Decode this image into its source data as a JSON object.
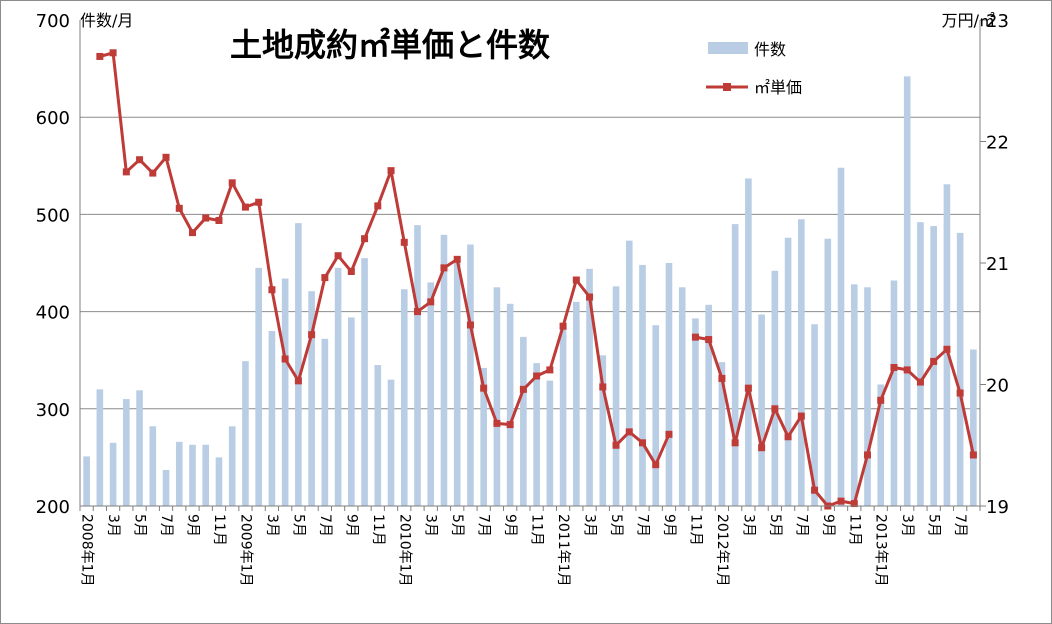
{
  "chart_data": {
    "type": "bar+line",
    "title": "土地成約㎡単価と件数",
    "y_left_label": "件数/月",
    "y_right_label": "万円/㎡",
    "y_left_range": [
      200,
      700
    ],
    "y_left_ticks": [
      "200",
      "300",
      "400",
      "500",
      "600",
      "700"
    ],
    "y_right_range": [
      19,
      23
    ],
    "y_right_ticks": [
      "19",
      "20",
      "21",
      "22",
      "23"
    ],
    "grid": true,
    "legend_position": "top-right",
    "x_tick_labels": [
      {
        "idx": 0,
        "label": "2008年1月"
      },
      {
        "idx": 2,
        "label": "3月"
      },
      {
        "idx": 4,
        "label": "5月"
      },
      {
        "idx": 6,
        "label": "7月"
      },
      {
        "idx": 8,
        "label": "9月"
      },
      {
        "idx": 10,
        "label": "11月"
      },
      {
        "idx": 12,
        "label": "2009年1月"
      },
      {
        "idx": 14,
        "label": "3月"
      },
      {
        "idx": 16,
        "label": "5月"
      },
      {
        "idx": 18,
        "label": "7月"
      },
      {
        "idx": 20,
        "label": "9月"
      },
      {
        "idx": 22,
        "label": "11月"
      },
      {
        "idx": 24,
        "label": "2010年1月"
      },
      {
        "idx": 26,
        "label": "3月"
      },
      {
        "idx": 28,
        "label": "5月"
      },
      {
        "idx": 30,
        "label": "7月"
      },
      {
        "idx": 32,
        "label": "9月"
      },
      {
        "idx": 34,
        "label": "11月"
      },
      {
        "idx": 36,
        "label": "2011年1月"
      },
      {
        "idx": 38,
        "label": "3月"
      },
      {
        "idx": 40,
        "label": "5月"
      },
      {
        "idx": 42,
        "label": "7月"
      },
      {
        "idx": 44,
        "label": "9月"
      },
      {
        "idx": 46,
        "label": "11月"
      },
      {
        "idx": 48,
        "label": "2012年1月"
      },
      {
        "idx": 50,
        "label": "3月"
      },
      {
        "idx": 52,
        "label": "5月"
      },
      {
        "idx": 54,
        "label": "7月"
      },
      {
        "idx": 56,
        "label": "9月"
      },
      {
        "idx": 58,
        "label": "11月"
      },
      {
        "idx": 60,
        "label": "2013年1月"
      },
      {
        "idx": 62,
        "label": "3月"
      },
      {
        "idx": 64,
        "label": "5月"
      },
      {
        "idx": 66,
        "label": "7月"
      }
    ],
    "series": [
      {
        "name": "件数",
        "type": "bar",
        "axis": "left",
        "values": [
          251,
          320,
          265,
          310,
          319,
          282,
          237,
          266,
          263,
          263,
          250,
          282,
          349,
          445,
          380,
          434,
          491,
          421,
          372,
          445,
          394,
          455,
          345,
          330,
          423,
          489,
          430,
          479,
          450,
          469,
          342,
          425,
          408,
          374,
          347,
          329,
          387,
          410,
          444,
          355,
          426,
          473,
          448,
          386,
          450,
          425,
          393,
          407,
          348,
          490,
          537,
          397,
          442,
          476,
          495,
          387,
          475,
          548,
          428,
          425,
          325,
          432,
          642,
          492,
          488,
          531,
          481,
          361
        ]
      },
      {
        "name": "㎡単価",
        "type": "line",
        "axis": "right",
        "values": [
          null,
          22.7,
          22.73,
          21.75,
          21.85,
          21.74,
          21.87,
          21.45,
          21.25,
          21.37,
          21.35,
          21.66,
          21.46,
          21.5,
          20.78,
          20.21,
          20.03,
          20.41,
          20.88,
          21.06,
          20.93,
          21.2,
          21.47,
          21.76,
          21.17,
          20.6,
          20.68,
          20.96,
          21.03,
          20.49,
          19.97,
          19.68,
          19.67,
          19.96,
          20.07,
          20.12,
          20.48,
          20.86,
          20.72,
          19.98,
          19.5,
          19.61,
          19.52,
          19.34,
          19.59,
          null,
          20.39,
          20.37,
          20.05,
          19.52,
          19.97,
          19.48,
          19.8,
          19.57,
          19.74,
          19.13,
          19.0,
          19.04,
          19.02,
          19.42,
          19.87,
          20.14,
          20.12,
          20.02,
          20.19,
          20.29,
          19.93,
          19.42
        ]
      }
    ]
  }
}
